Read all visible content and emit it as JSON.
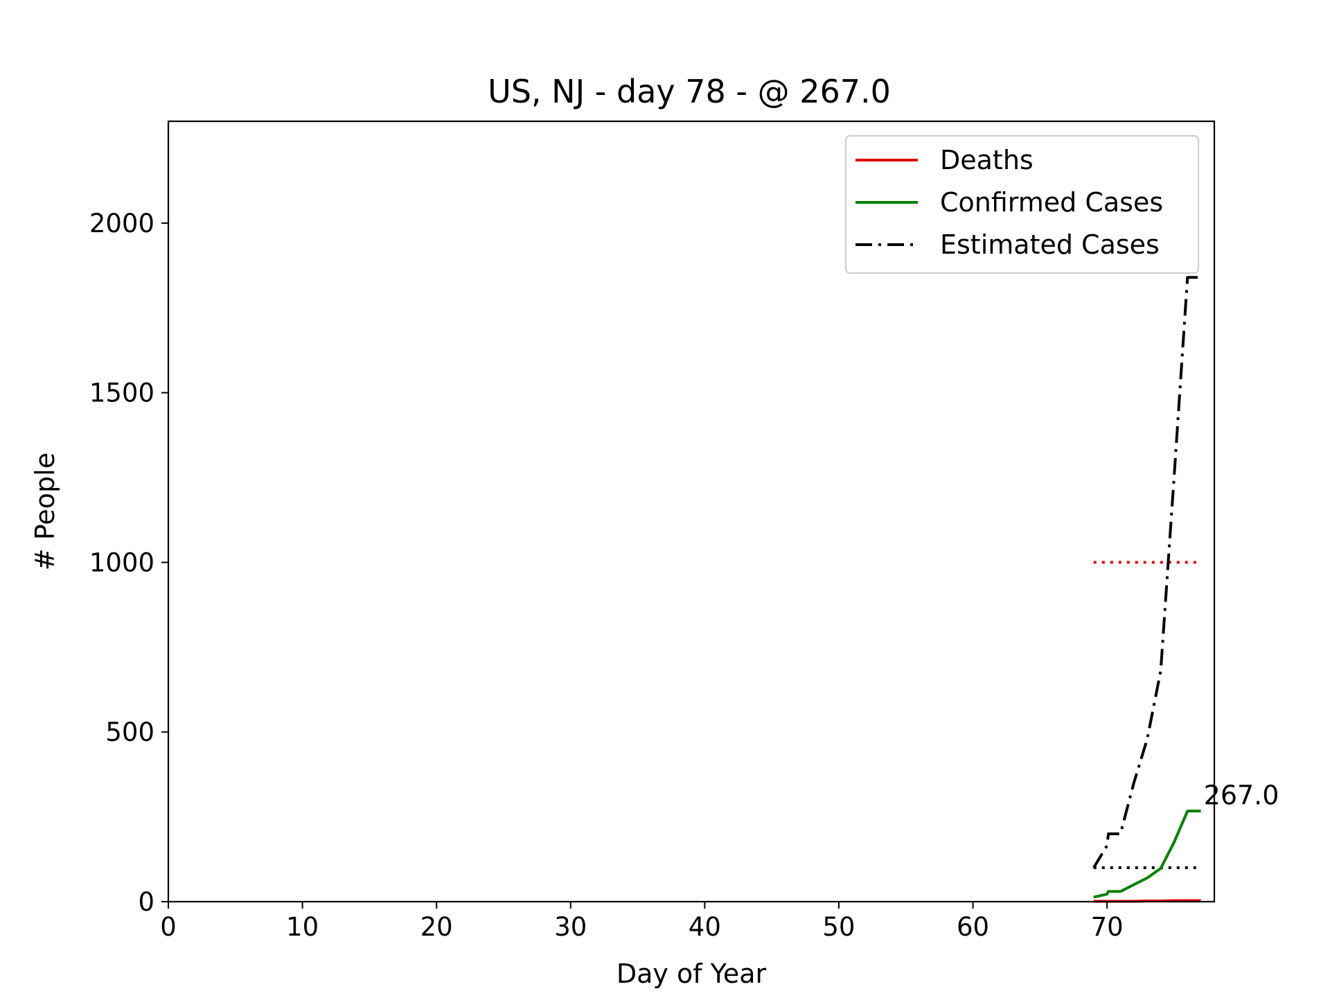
{
  "chart_data": {
    "type": "line",
    "title": "US, NJ - day 78 - @ 267.0",
    "xlabel": "Day of Year",
    "ylabel": "# People",
    "xlim": [
      0,
      78
    ],
    "ylim": [
      0,
      2300
    ],
    "xticks": [
      0,
      10,
      20,
      30,
      40,
      50,
      60,
      70
    ],
    "yticks": [
      0,
      500,
      1000,
      1500,
      2000
    ],
    "grid": false,
    "legend_position": "upper right",
    "series": [
      {
        "name": "Deaths",
        "color": "#e00000",
        "style": "solid",
        "x": [
          69,
          70,
          71,
          72,
          73,
          74,
          75,
          76,
          77
        ],
        "y": [
          1,
          1,
          1,
          1,
          2,
          2,
          3,
          3,
          3
        ]
      },
      {
        "name": "Confirmed Cases",
        "color": "#008000",
        "style": "solid",
        "x": [
          69,
          70,
          70.1,
          71,
          72,
          73,
          74,
          75,
          76,
          77
        ],
        "y": [
          13,
          22,
          30,
          30,
          50,
          70,
          98,
          175,
          267,
          267
        ]
      },
      {
        "name": "Estimated Cases",
        "color": "#000000",
        "style": "dashdot",
        "x": [
          69,
          70,
          70.1,
          71,
          72,
          73,
          74,
          75,
          76,
          77
        ],
        "y": [
          100,
          165,
          200,
          200,
          350,
          480,
          680,
          1250,
          1840,
          1840
        ]
      }
    ],
    "reference_lines": [
      {
        "y": 1000,
        "x_start": 69,
        "x_end": 77,
        "color": "#e00000",
        "style": "dotted"
      },
      {
        "y": 100,
        "x_start": 69,
        "x_end": 77,
        "color": "#000000",
        "style": "dotted"
      }
    ],
    "annotations": [
      {
        "text": "267.0",
        "x": 77,
        "y": 267
      }
    ]
  }
}
